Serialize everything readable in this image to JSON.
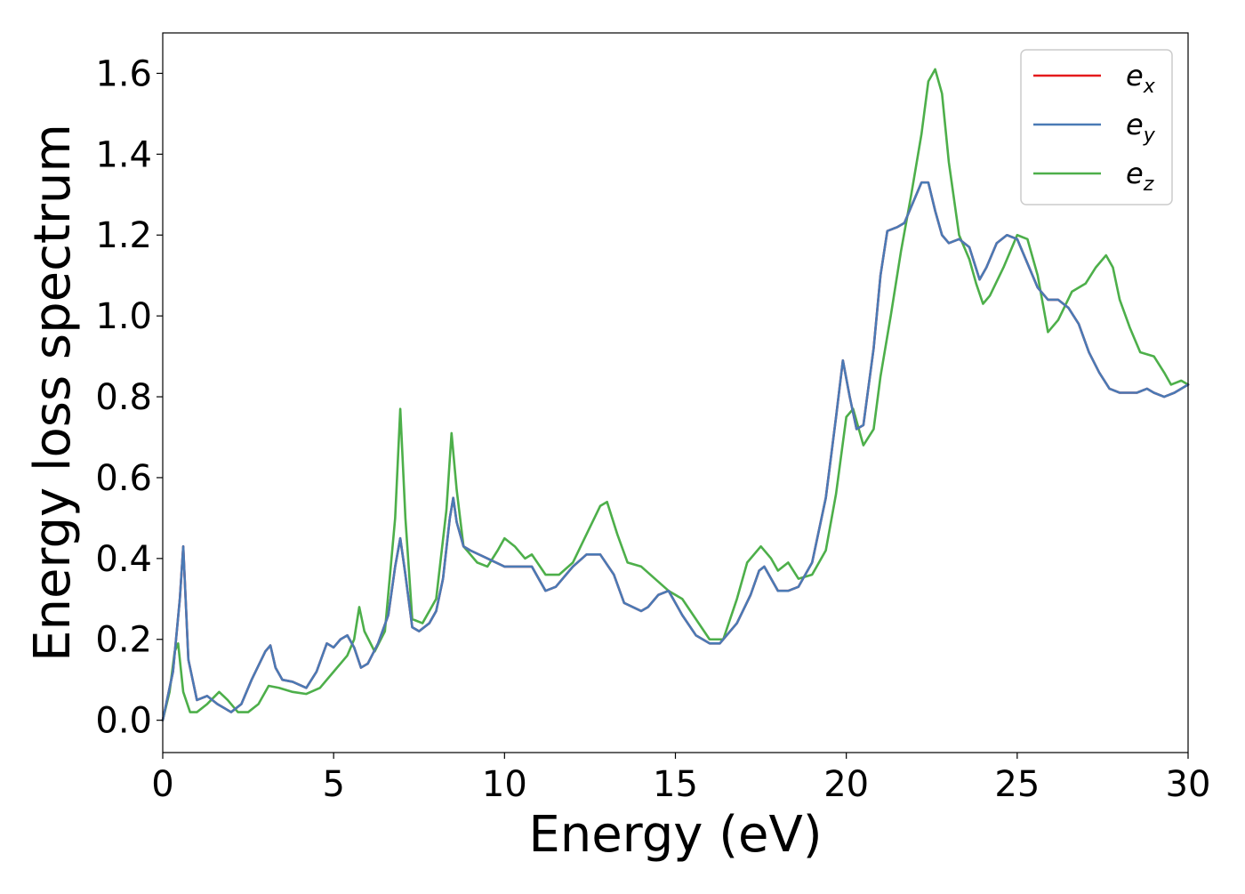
{
  "chart_data": {
    "type": "line",
    "xlabel": "Energy (eV)",
    "ylabel": "Energy loss spectrum",
    "xlim": [
      0,
      30
    ],
    "ylim": [
      -0.08,
      1.7
    ],
    "xticks": [
      0,
      5,
      10,
      15,
      20,
      25,
      30
    ],
    "yticks": [
      0.0,
      0.2,
      0.4,
      0.6,
      0.8,
      1.0,
      1.2,
      1.4,
      1.6
    ],
    "xtick_labels": [
      "0",
      "5",
      "10",
      "15",
      "20",
      "25",
      "30"
    ],
    "ytick_labels": [
      "0.0",
      "0.2",
      "0.4",
      "0.6",
      "0.8",
      "1.0",
      "1.2",
      "1.4",
      "1.6"
    ],
    "grid": false,
    "legend_position": "top-right",
    "series": [
      {
        "name": "e_x",
        "legend_base": "e",
        "legend_sub": "x",
        "color": "#e41a1c",
        "x": [
          0,
          0.3,
          0.5,
          0.6,
          0.75,
          1.0,
          1.3,
          1.6,
          2.0,
          2.3,
          2.6,
          3.0,
          3.15,
          3.3,
          3.5,
          3.8,
          4.2,
          4.5,
          4.8,
          5.0,
          5.2,
          5.4,
          5.6,
          5.8,
          6.0,
          6.3,
          6.6,
          6.8,
          6.95,
          7.1,
          7.3,
          7.5,
          7.8,
          8.0,
          8.2,
          8.4,
          8.5,
          8.6,
          8.8,
          9.0,
          9.5,
          10.0,
          10.5,
          10.8,
          11.0,
          11.2,
          11.5,
          12.0,
          12.4,
          12.8,
          13.2,
          13.5,
          14.0,
          14.2,
          14.5,
          14.8,
          15.2,
          15.6,
          16.0,
          16.3,
          16.8,
          17.2,
          17.45,
          17.6,
          17.8,
          18.0,
          18.3,
          18.6,
          19.0,
          19.4,
          19.7,
          19.9,
          20.1,
          20.3,
          20.5,
          20.8,
          21.0,
          21.2,
          21.5,
          21.7,
          21.9,
          22.2,
          22.4,
          22.6,
          22.8,
          23.0,
          23.3,
          23.6,
          23.9,
          24.1,
          24.4,
          24.7,
          25.0,
          25.3,
          25.6,
          25.9,
          26.2,
          26.5,
          26.8,
          27.1,
          27.4,
          27.7,
          28.0,
          28.2,
          28.5,
          28.8,
          29.0,
          29.3,
          29.6,
          30.0
        ],
        "y": [
          0.0,
          0.12,
          0.3,
          0.43,
          0.15,
          0.05,
          0.06,
          0.04,
          0.02,
          0.04,
          0.1,
          0.17,
          0.185,
          0.13,
          0.1,
          0.095,
          0.08,
          0.12,
          0.19,
          0.18,
          0.2,
          0.21,
          0.18,
          0.13,
          0.14,
          0.19,
          0.26,
          0.38,
          0.45,
          0.36,
          0.23,
          0.22,
          0.24,
          0.27,
          0.35,
          0.5,
          0.55,
          0.49,
          0.43,
          0.42,
          0.4,
          0.38,
          0.38,
          0.38,
          0.35,
          0.32,
          0.33,
          0.38,
          0.41,
          0.41,
          0.36,
          0.29,
          0.27,
          0.28,
          0.31,
          0.32,
          0.26,
          0.21,
          0.19,
          0.19,
          0.24,
          0.31,
          0.37,
          0.38,
          0.35,
          0.32,
          0.32,
          0.33,
          0.39,
          0.55,
          0.75,
          0.89,
          0.8,
          0.72,
          0.73,
          0.92,
          1.1,
          1.21,
          1.22,
          1.23,
          1.27,
          1.33,
          1.33,
          1.26,
          1.2,
          1.18,
          1.19,
          1.17,
          1.09,
          1.12,
          1.18,
          1.2,
          1.19,
          1.13,
          1.07,
          1.04,
          1.04,
          1.02,
          0.98,
          0.91,
          0.86,
          0.82,
          0.81,
          0.81,
          0.81,
          0.82,
          0.81,
          0.8,
          0.81,
          0.83
        ]
      },
      {
        "name": "e_y",
        "legend_base": "e",
        "legend_sub": "y",
        "color": "#4a7ab5",
        "x": [
          0,
          0.3,
          0.5,
          0.6,
          0.75,
          1.0,
          1.3,
          1.6,
          2.0,
          2.3,
          2.6,
          3.0,
          3.15,
          3.3,
          3.5,
          3.8,
          4.2,
          4.5,
          4.8,
          5.0,
          5.2,
          5.4,
          5.6,
          5.8,
          6.0,
          6.3,
          6.6,
          6.8,
          6.95,
          7.1,
          7.3,
          7.5,
          7.8,
          8.0,
          8.2,
          8.4,
          8.5,
          8.6,
          8.8,
          9.0,
          9.5,
          10.0,
          10.5,
          10.8,
          11.0,
          11.2,
          11.5,
          12.0,
          12.4,
          12.8,
          13.2,
          13.5,
          14.0,
          14.2,
          14.5,
          14.8,
          15.2,
          15.6,
          16.0,
          16.3,
          16.8,
          17.2,
          17.45,
          17.6,
          17.8,
          18.0,
          18.3,
          18.6,
          19.0,
          19.4,
          19.7,
          19.9,
          20.1,
          20.3,
          20.5,
          20.8,
          21.0,
          21.2,
          21.5,
          21.7,
          21.9,
          22.2,
          22.4,
          22.6,
          22.8,
          23.0,
          23.3,
          23.6,
          23.9,
          24.1,
          24.4,
          24.7,
          25.0,
          25.3,
          25.6,
          25.9,
          26.2,
          26.5,
          26.8,
          27.1,
          27.4,
          27.7,
          28.0,
          28.2,
          28.5,
          28.8,
          29.0,
          29.3,
          29.6,
          30.0
        ],
        "y": [
          0.0,
          0.12,
          0.3,
          0.43,
          0.15,
          0.05,
          0.06,
          0.04,
          0.02,
          0.04,
          0.1,
          0.17,
          0.185,
          0.13,
          0.1,
          0.095,
          0.08,
          0.12,
          0.19,
          0.18,
          0.2,
          0.21,
          0.18,
          0.13,
          0.14,
          0.19,
          0.26,
          0.38,
          0.45,
          0.36,
          0.23,
          0.22,
          0.24,
          0.27,
          0.35,
          0.5,
          0.55,
          0.49,
          0.43,
          0.42,
          0.4,
          0.38,
          0.38,
          0.38,
          0.35,
          0.32,
          0.33,
          0.38,
          0.41,
          0.41,
          0.36,
          0.29,
          0.27,
          0.28,
          0.31,
          0.32,
          0.26,
          0.21,
          0.19,
          0.19,
          0.24,
          0.31,
          0.37,
          0.38,
          0.35,
          0.32,
          0.32,
          0.33,
          0.39,
          0.55,
          0.75,
          0.89,
          0.8,
          0.72,
          0.73,
          0.92,
          1.1,
          1.21,
          1.22,
          1.23,
          1.27,
          1.33,
          1.33,
          1.26,
          1.2,
          1.18,
          1.19,
          1.17,
          1.09,
          1.12,
          1.18,
          1.2,
          1.19,
          1.13,
          1.07,
          1.04,
          1.04,
          1.02,
          0.98,
          0.91,
          0.86,
          0.82,
          0.81,
          0.81,
          0.81,
          0.82,
          0.81,
          0.8,
          0.81,
          0.83
        ]
      },
      {
        "name": "e_z",
        "legend_base": "e",
        "legend_sub": "z",
        "color": "#4daf4a",
        "x": [
          0,
          0.2,
          0.35,
          0.45,
          0.6,
          0.8,
          1.0,
          1.3,
          1.65,
          1.9,
          2.2,
          2.5,
          2.8,
          3.1,
          3.4,
          3.8,
          4.2,
          4.6,
          5.0,
          5.4,
          5.6,
          5.75,
          5.9,
          6.2,
          6.5,
          6.8,
          6.95,
          7.1,
          7.3,
          7.6,
          8.0,
          8.3,
          8.45,
          8.6,
          8.8,
          9.2,
          9.5,
          9.8,
          10.0,
          10.3,
          10.6,
          10.8,
          11.2,
          11.6,
          12.0,
          12.4,
          12.8,
          13.0,
          13.3,
          13.6,
          14.0,
          14.4,
          14.8,
          15.2,
          15.6,
          16.0,
          16.4,
          16.8,
          17.1,
          17.5,
          17.8,
          18.0,
          18.3,
          18.6,
          19.0,
          19.4,
          19.7,
          20.0,
          20.2,
          20.5,
          20.8,
          21.0,
          21.3,
          21.6,
          21.9,
          22.2,
          22.4,
          22.6,
          22.8,
          23.0,
          23.3,
          23.6,
          23.8,
          24.0,
          24.2,
          24.6,
          25.0,
          25.3,
          25.6,
          25.9,
          26.2,
          26.6,
          27.0,
          27.3,
          27.6,
          27.8,
          28.0,
          28.3,
          28.6,
          29.0,
          29.3,
          29.5,
          29.8,
          30.0
        ],
        "y": [
          0.0,
          0.07,
          0.17,
          0.19,
          0.07,
          0.02,
          0.02,
          0.04,
          0.07,
          0.05,
          0.02,
          0.02,
          0.04,
          0.085,
          0.08,
          0.07,
          0.065,
          0.08,
          0.12,
          0.16,
          0.2,
          0.28,
          0.22,
          0.17,
          0.22,
          0.5,
          0.77,
          0.5,
          0.25,
          0.24,
          0.3,
          0.52,
          0.71,
          0.57,
          0.43,
          0.39,
          0.38,
          0.42,
          0.45,
          0.43,
          0.4,
          0.41,
          0.36,
          0.36,
          0.39,
          0.46,
          0.53,
          0.54,
          0.46,
          0.39,
          0.38,
          0.35,
          0.32,
          0.3,
          0.25,
          0.2,
          0.2,
          0.3,
          0.39,
          0.43,
          0.4,
          0.37,
          0.39,
          0.35,
          0.36,
          0.42,
          0.56,
          0.75,
          0.77,
          0.68,
          0.72,
          0.85,
          1.0,
          1.16,
          1.3,
          1.45,
          1.58,
          1.61,
          1.55,
          1.38,
          1.2,
          1.14,
          1.08,
          1.03,
          1.05,
          1.12,
          1.2,
          1.19,
          1.1,
          0.96,
          0.99,
          1.06,
          1.08,
          1.12,
          1.15,
          1.12,
          1.04,
          0.97,
          0.91,
          0.9,
          0.86,
          0.83,
          0.84,
          0.83
        ]
      }
    ]
  }
}
